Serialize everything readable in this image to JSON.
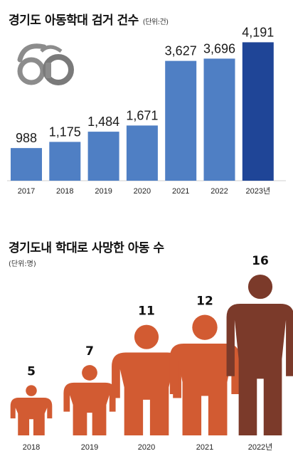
{
  "chart_data": [
    {
      "type": "bar",
      "title": "경기도 아동학대 검거 건수",
      "unit": "(단위:건)",
      "categories": [
        "2017",
        "2018",
        "2019",
        "2020",
        "2021",
        "2022",
        "2023년"
      ],
      "values": [
        988,
        1175,
        1484,
        1671,
        3627,
        3696,
        4191
      ],
      "value_labels": [
        "988",
        "1,175",
        "1,484",
        "1,671",
        "3,627",
        "3,696",
        "4,191"
      ],
      "ylim": [
        0,
        4200
      ],
      "colors": {
        "bar": "#4f7fc4",
        "highlight": "#1f4597"
      },
      "icon": "handcuffs-icon"
    },
    {
      "type": "bar",
      "title": "경기도내 학대로 사망한 아동 수",
      "unit": "(단위:명)",
      "categories": [
        "2018",
        "2019",
        "2020",
        "2021",
        "2022년"
      ],
      "values": [
        5,
        7,
        11,
        12,
        16
      ],
      "ylim": [
        0,
        16
      ],
      "colors": {
        "figure": "#d25b32",
        "highlight": "#7b3a2a"
      },
      "mark": "person-icon"
    }
  ]
}
